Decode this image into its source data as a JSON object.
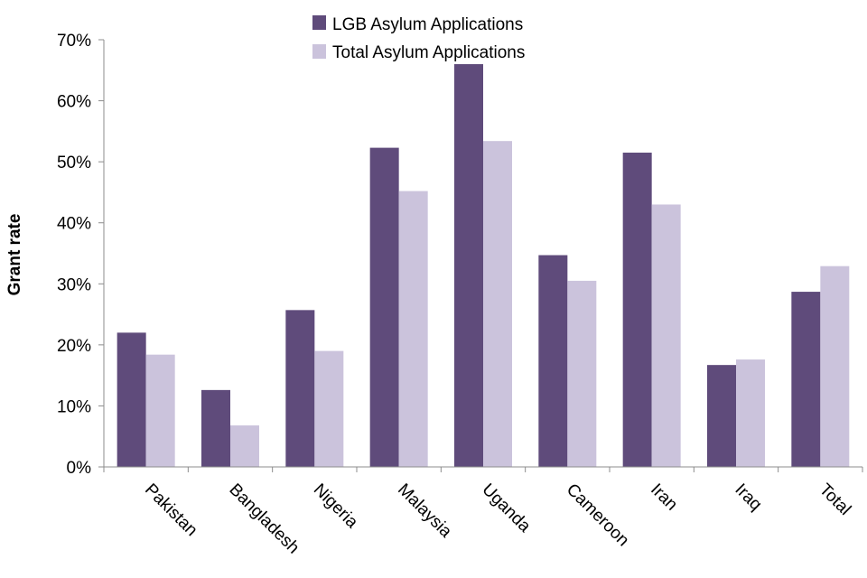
{
  "chart_data": {
    "type": "bar",
    "title": "",
    "xlabel": "",
    "ylabel": "Grant rate",
    "ylim": [
      0,
      70
    ],
    "y_ticks": [
      0,
      10,
      20,
      30,
      40,
      50,
      60,
      70
    ],
    "y_tick_labels": [
      "0%",
      "10%",
      "20%",
      "30%",
      "40%",
      "50%",
      "60%",
      "70%"
    ],
    "grid": false,
    "legend_position": "top-center",
    "categories": [
      "Pakistan",
      "Bangladesh",
      "Nigeria",
      "Malaysia",
      "Uganda",
      "Cameroon",
      "Iran",
      "Iraq",
      "Total"
    ],
    "series": [
      {
        "name": "LGB Asylum Applications",
        "color": "#5f4b7b",
        "values": [
          22,
          12.6,
          25.7,
          52.3,
          66,
          34.7,
          51.5,
          16.7,
          28.7
        ]
      },
      {
        "name": "Total Asylum Applications",
        "color": "#cbc3dc",
        "values": [
          18.4,
          6.8,
          19,
          45.2,
          53.4,
          30.5,
          43,
          17.6,
          32.9
        ]
      }
    ]
  }
}
